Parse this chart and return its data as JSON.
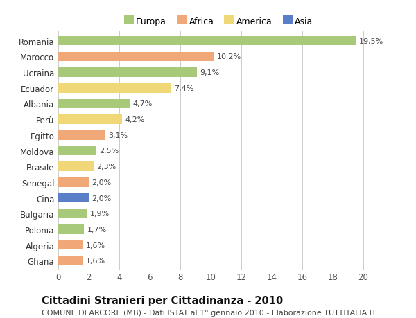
{
  "countries": [
    "Romania",
    "Marocco",
    "Ucraina",
    "Ecuador",
    "Albania",
    "Perù",
    "Egitto",
    "Moldova",
    "Brasile",
    "Senegal",
    "Cina",
    "Bulgaria",
    "Polonia",
    "Algeria",
    "Ghana"
  ],
  "values": [
    19.5,
    10.2,
    9.1,
    7.4,
    4.7,
    4.2,
    3.1,
    2.5,
    2.3,
    2.0,
    2.0,
    1.9,
    1.7,
    1.6,
    1.6
  ],
  "labels": [
    "19,5%",
    "10,2%",
    "9,1%",
    "7,4%",
    "4,7%",
    "4,2%",
    "3,1%",
    "2,5%",
    "2,3%",
    "2,0%",
    "2,0%",
    "1,9%",
    "1,7%",
    "1,6%",
    "1,6%"
  ],
  "continents": [
    "Europa",
    "Africa",
    "Europa",
    "America",
    "Europa",
    "America",
    "Africa",
    "Europa",
    "America",
    "Africa",
    "Asia",
    "Europa",
    "Europa",
    "Africa",
    "Africa"
  ],
  "colors": {
    "Europa": "#a8c87a",
    "Africa": "#f0a878",
    "America": "#f0d878",
    "Asia": "#5b7ec9"
  },
  "xlim": [
    0,
    21
  ],
  "xticks": [
    0,
    2,
    4,
    6,
    8,
    10,
    12,
    14,
    16,
    18,
    20
  ],
  "title": "Cittadini Stranieri per Cittadinanza - 2010",
  "subtitle": "COMUNE DI ARCORE (MB) - Dati ISTAT al 1° gennaio 2010 - Elaborazione TUTTITALIA.IT",
  "bg_color": "#ffffff",
  "grid_color": "#cccccc",
  "bar_height": 0.6,
  "label_fontsize": 8.0,
  "ytick_fontsize": 8.5,
  "xtick_fontsize": 8.5,
  "title_fontsize": 10.5,
  "subtitle_fontsize": 8.0,
  "legend_fontsize": 9.0
}
